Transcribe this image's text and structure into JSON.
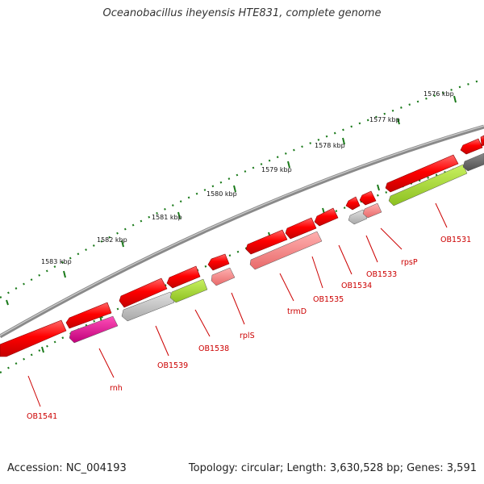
{
  "title": "Oceanobacillus iheyensis HTE831, complete genome",
  "footer": {
    "accession": "Accession: NC_004193",
    "summary": "Topology: circular; Length: 3,630,528 bp; Genes: 3,591"
  },
  "ruler_labels": [
    "1576 kbp",
    "1577 kbp",
    "1578 kbp",
    "1579 kbp",
    "1580 kbp",
    "1581 kbp",
    "1582 kbp",
    "1583 kbp"
  ],
  "gene_labels": [
    "OB1531",
    "rpsP",
    "OB1533",
    "OB1534",
    "OB1535",
    "trmD",
    "rplS",
    "OB1538",
    "OB1539",
    "rnh",
    "OB1541"
  ],
  "colors": {
    "cds_red": "#ff0000",
    "gene_pink": "#f08080",
    "gene_gray": "#bfbfbf",
    "gene_green": "#9acd32",
    "gene_magenta": "#e0118f",
    "gene_dark": "#696969",
    "backbone": "#808080",
    "tick": "#1a7a1a",
    "label": "#cc0000"
  }
}
